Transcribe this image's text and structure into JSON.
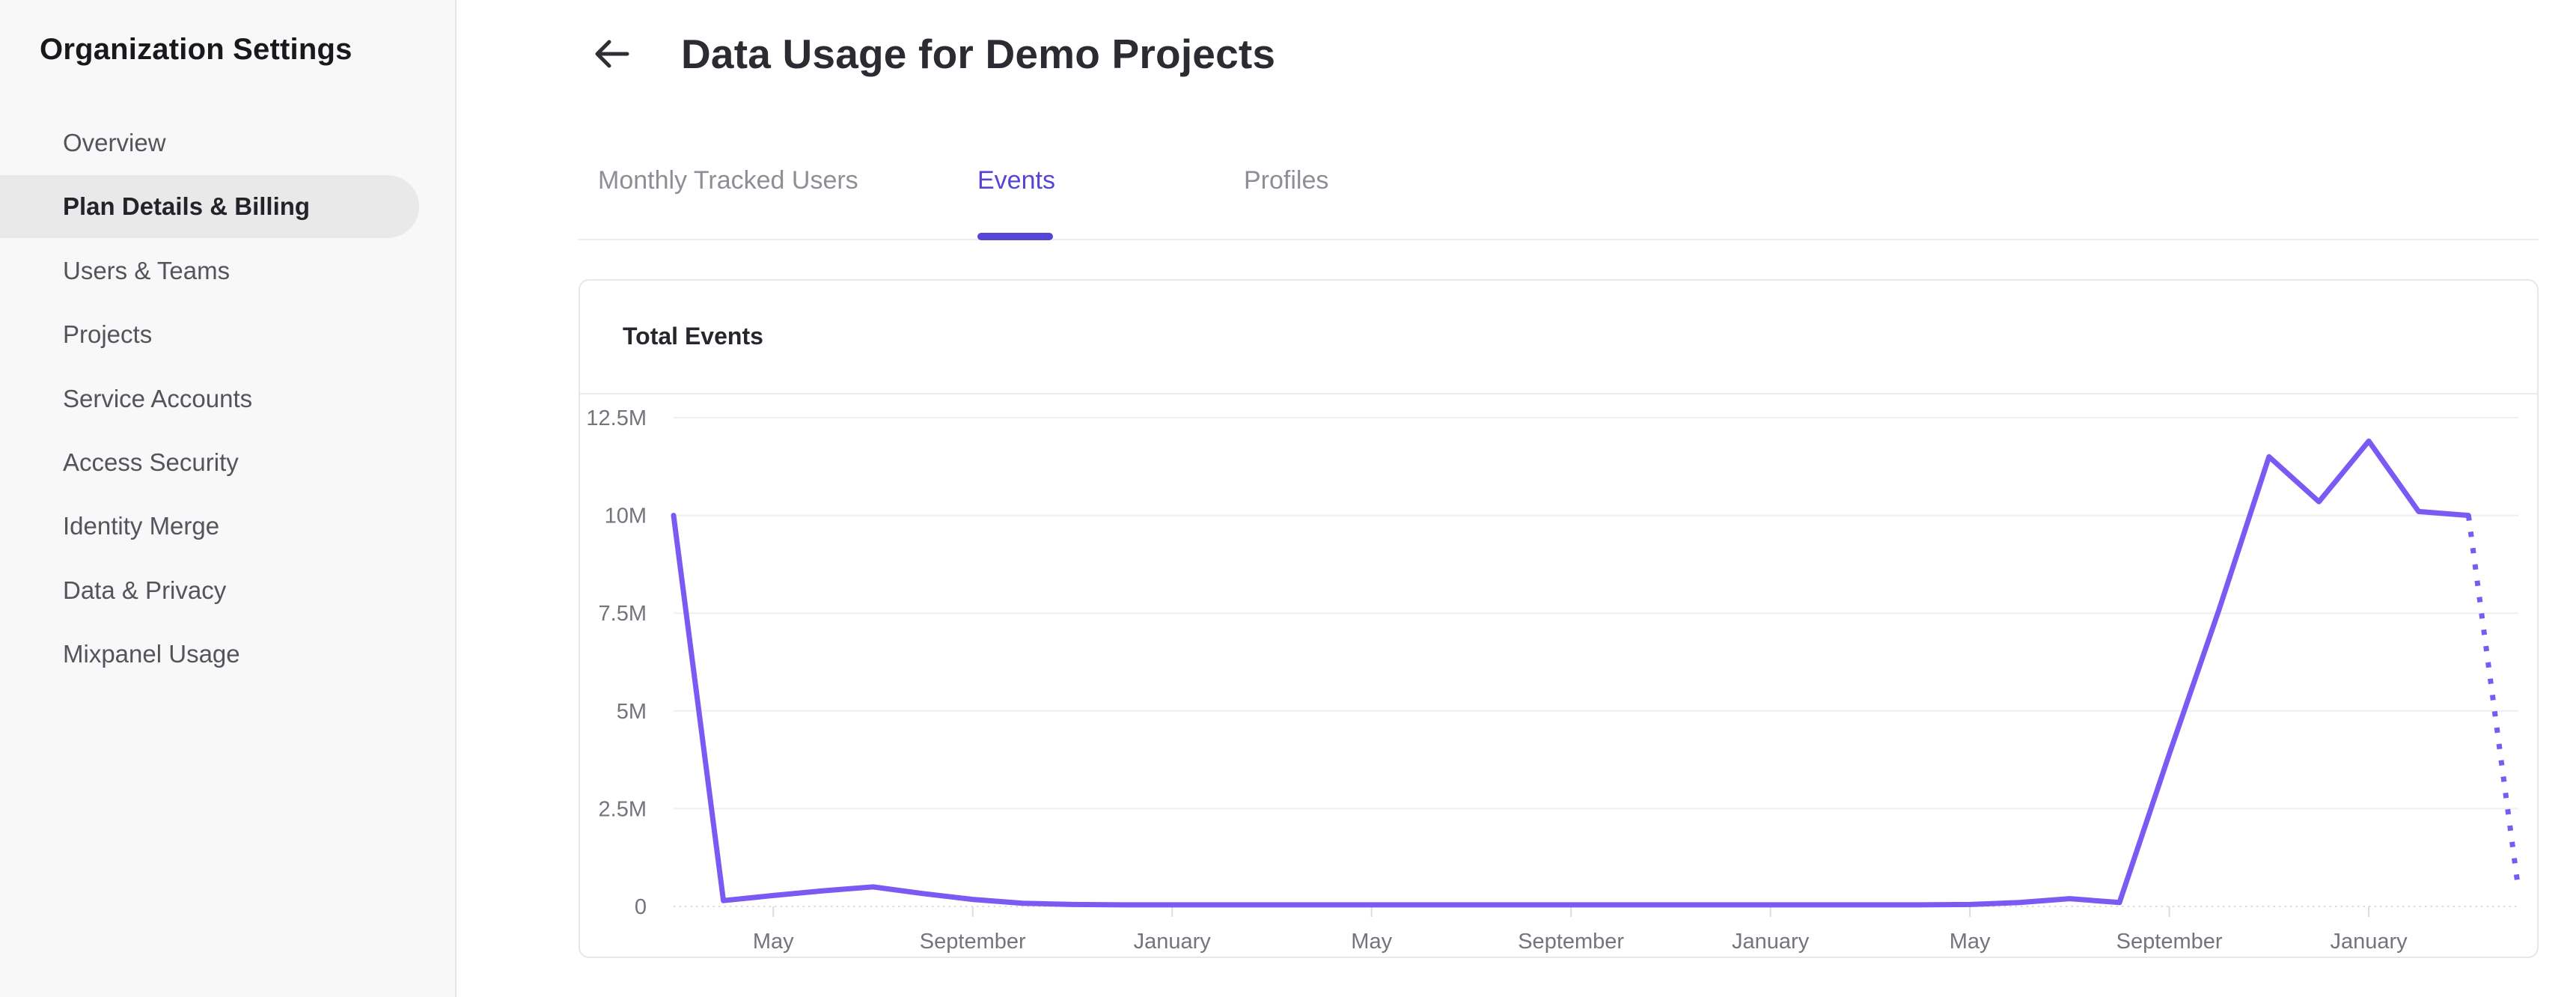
{
  "sidebar": {
    "title": "Organization Settings",
    "items": [
      {
        "label": "Overview",
        "active": false
      },
      {
        "label": "Plan Details & Billing",
        "active": true
      },
      {
        "label": "Users & Teams",
        "active": false
      },
      {
        "label": "Projects",
        "active": false
      },
      {
        "label": "Service Accounts",
        "active": false
      },
      {
        "label": "Access Security",
        "active": false
      },
      {
        "label": "Identity Merge",
        "active": false
      },
      {
        "label": "Data & Privacy",
        "active": false
      },
      {
        "label": "Mixpanel Usage",
        "active": false
      }
    ]
  },
  "header": {
    "title": "Data Usage for Demo Projects",
    "back_icon": "arrow-left-icon"
  },
  "tabs": [
    {
      "label": "Monthly Tracked Users",
      "active": false
    },
    {
      "label": "Events",
      "active": true
    },
    {
      "label": "Profiles",
      "active": false
    }
  ],
  "card": {
    "title": "Total Events"
  },
  "colors": {
    "accent": "#5645d5",
    "chart_line": "#7a5af2",
    "grid_line": "#efeff1",
    "zero_line": "#dcdcdf",
    "axis_label": "#74747c",
    "sidebar_active_bg": "#e9e9ea"
  },
  "chart_data": {
    "type": "line",
    "title": "Total Events",
    "xlabel": "",
    "ylabel": "",
    "x_unit": "month",
    "grid": "horizontal",
    "legend": "none",
    "ylim_millions": [
      0,
      12.5
    ],
    "y_tick_labels": [
      "12.5M",
      "10M",
      "7.5M",
      "5M",
      "2.5M",
      "0"
    ],
    "y_tick_values_millions": [
      12.5,
      10,
      7.5,
      5,
      2.5,
      0
    ],
    "x_tick_labels": [
      "May",
      "September",
      "January",
      "May",
      "September",
      "January",
      "May",
      "September",
      "January"
    ],
    "x_tick_indices": [
      2,
      6,
      10,
      14,
      18,
      22,
      26,
      30,
      34
    ],
    "series": [
      {
        "name": "Total Events",
        "values_millions": [
          10,
          0.15,
          0.28,
          0.4,
          0.5,
          0.33,
          0.18,
          0.08,
          0.05,
          0.04,
          0.04,
          0.04,
          0.04,
          0.04,
          0.04,
          0.04,
          0.04,
          0.04,
          0.04,
          0.04,
          0.04,
          0.04,
          0.04,
          0.04,
          0.04,
          0.04,
          0.05,
          0.1,
          0.2,
          0.1,
          3.9,
          7.6,
          11.5,
          10.35,
          11.9,
          10.1,
          10.0,
          0.45
        ],
        "projected_tail_points": 1,
        "note": "last point drawn as dotted projection"
      }
    ]
  }
}
